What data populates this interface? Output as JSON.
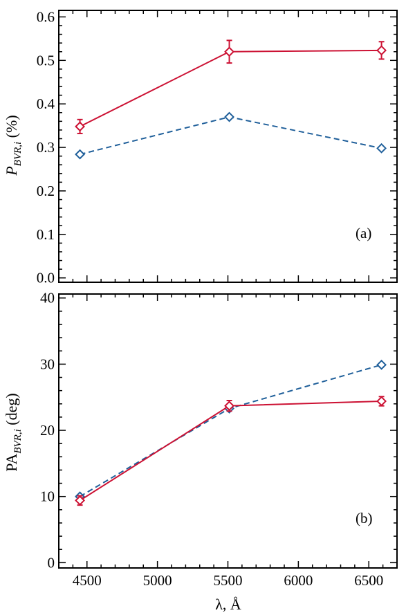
{
  "chart_data": [
    {
      "type": "line",
      "panel_label": "(a)",
      "ylabel": {
        "main": "P",
        "sub": "BVR,i",
        "unit": " (%)"
      },
      "xlim": [
        4300,
        6700
      ],
      "ylim": [
        -0.01,
        0.615
      ],
      "yticks": [
        "0.0",
        "0.1",
        "0.2",
        "0.3",
        "0.4",
        "0.5",
        "0.6"
      ],
      "series": [
        {
          "color": "#cc1133",
          "style": "solid",
          "x": [
            4450,
            5510,
            6590
          ],
          "y": [
            0.348,
            0.52,
            0.523
          ],
          "yerr": [
            0.016,
            0.026,
            0.02
          ]
        },
        {
          "color": "#1f5f9a",
          "style": "dashed",
          "x": [
            4450,
            5510,
            6590
          ],
          "y": [
            0.284,
            0.37,
            0.298
          ],
          "yerr": [
            0,
            0,
            0
          ]
        }
      ]
    },
    {
      "type": "line",
      "panel_label": "(b)",
      "ylabel": {
        "main": "PA",
        "sub": "BVR,i",
        "unit": " (deg)"
      },
      "xlim": [
        4300,
        6700
      ],
      "ylim": [
        -0.8,
        40.6
      ],
      "yticks": [
        "0",
        "10",
        "20",
        "30",
        "40"
      ],
      "series": [
        {
          "color": "#1f5f9a",
          "style": "dashed",
          "x": [
            4450,
            5510,
            6590
          ],
          "y": [
            10.0,
            23.3,
            29.9
          ],
          "yerr": [
            0,
            0,
            0
          ]
        },
        {
          "color": "#cc1133",
          "style": "solid",
          "x": [
            4450,
            5510,
            6590
          ],
          "y": [
            9.4,
            23.7,
            24.4
          ],
          "yerr": [
            0.7,
            0.8,
            0.7
          ]
        }
      ]
    }
  ],
  "xticks": [
    "4500",
    "5000",
    "5500",
    "6000",
    "6500"
  ],
  "xlabel": "λ, Å"
}
